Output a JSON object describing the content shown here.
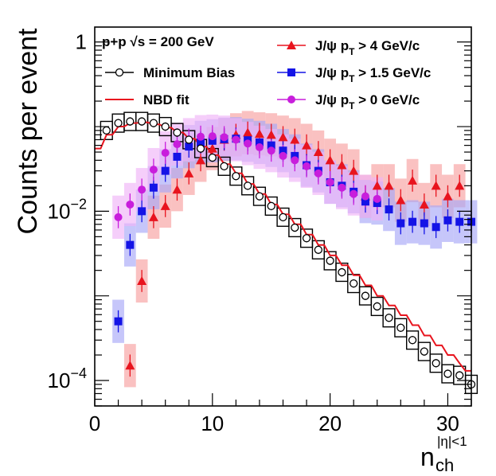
{
  "chart_data": {
    "type": "scatter",
    "title": "",
    "xlabel": "n",
    "xlabel_sub": "ch",
    "xlabel_sup": "|η|<1",
    "ylabel": "Counts per event",
    "xlim": [
      0,
      32
    ],
    "ylim": [
      5e-05,
      1.5
    ],
    "yscale": "log",
    "xticks": [
      0,
      10,
      20,
      30
    ],
    "yticks": [
      {
        "value": 1,
        "base": "1",
        "exp": ""
      },
      {
        "value": 0.01,
        "base": "10",
        "exp": "−2"
      },
      {
        "value": 0.0001,
        "base": "10",
        "exp": "−4"
      }
    ],
    "legend_header": "p+p  √s = 200 GeV",
    "series": [
      {
        "name": "Minimum Bias",
        "marker": "open-circle",
        "color": "#000000",
        "x": [
          1,
          2,
          3,
          4,
          5,
          6,
          7,
          8,
          9,
          10,
          11,
          12,
          13,
          14,
          15,
          16,
          17,
          18,
          19,
          20,
          21,
          22,
          23,
          24,
          25,
          26,
          27,
          28,
          29,
          30,
          31,
          32
        ],
        "y": [
          0.09,
          0.11,
          0.115,
          0.115,
          0.11,
          0.1,
          0.085,
          0.07,
          0.055,
          0.043,
          0.034,
          0.026,
          0.02,
          0.015,
          0.0115,
          0.0085,
          0.0064,
          0.0048,
          0.0035,
          0.0026,
          0.0019,
          0.0014,
          0.001,
          0.00075,
          0.00055,
          0.00042,
          0.0003,
          0.00022,
          0.00016,
          0.00012,
          0.000115,
          9e-05
        ]
      },
      {
        "name": "NBD fit",
        "marker": "line",
        "color": "#e8141e",
        "x": [
          0,
          0.5,
          1,
          1.5,
          2,
          2.5,
          3,
          3.5,
          4,
          4.5,
          5,
          5.5,
          6,
          6.5,
          7,
          7.5,
          8,
          8.5,
          9,
          9.5,
          10,
          10.5,
          11,
          11.5,
          12,
          12.5,
          13,
          13.5,
          14,
          14.5,
          15,
          15.5,
          16,
          16.5,
          17,
          17.5,
          18,
          18.5,
          19,
          19.5,
          20,
          20.5,
          21,
          21.5,
          22,
          22.5,
          23,
          23.5,
          24,
          24.5,
          25,
          25.5,
          26,
          26.5,
          27,
          27.5,
          28,
          28.5,
          29,
          29.5,
          30,
          30.5,
          31,
          31.5,
          32
        ],
        "y": [
          0.055,
          0.055,
          0.08,
          0.08,
          0.1,
          0.1,
          0.11,
          0.11,
          0.112,
          0.112,
          0.106,
          0.106,
          0.097,
          0.097,
          0.085,
          0.085,
          0.072,
          0.072,
          0.058,
          0.058,
          0.046,
          0.046,
          0.036,
          0.036,
          0.028,
          0.028,
          0.021,
          0.021,
          0.016,
          0.016,
          0.012,
          0.012,
          0.0092,
          0.0092,
          0.007,
          0.007,
          0.0053,
          0.0053,
          0.004,
          0.004,
          0.003,
          0.003,
          0.0023,
          0.0023,
          0.00175,
          0.00175,
          0.00133,
          0.00133,
          0.001,
          0.001,
          0.00077,
          0.00077,
          0.00059,
          0.00059,
          0.00045,
          0.00045,
          0.00034,
          0.00034,
          0.00026,
          0.00026,
          0.0002,
          0.0002,
          0.00016,
          0.00013,
          0.00013
        ]
      },
      {
        "name": "J/ψ p_T > 4 GeV/c",
        "label_base": "J/ψ p",
        "label_sub": "T",
        "label_rest": " > 4 GeV/c",
        "marker": "triangle",
        "color": "#e8141e",
        "band": "#f7a0a0",
        "x": [
          3,
          4,
          5,
          6,
          7,
          8,
          9,
          10,
          11,
          12,
          13,
          14,
          15,
          16,
          17,
          18,
          19,
          20,
          21,
          22,
          23,
          24,
          25,
          26,
          27,
          28,
          29,
          30,
          31
        ],
        "y": [
          0.00015,
          0.0015,
          0.0085,
          0.0115,
          0.018,
          0.028,
          0.04,
          0.055,
          0.07,
          0.08,
          0.085,
          0.082,
          0.08,
          0.075,
          0.07,
          0.06,
          0.05,
          0.04,
          0.035,
          0.03,
          0.015,
          0.02,
          0.02,
          0.0135,
          0.023,
          0.012,
          0.02,
          0.015,
          0.02
        ]
      },
      {
        "name": "J/ψ p_T > 1.5 GeV/c",
        "label_base": "J/ψ p",
        "label_sub": "T",
        "label_rest": " > 1.5 GeV/c",
        "marker": "square",
        "color": "#1414e6",
        "band": "#a8a8f7",
        "x": [
          2,
          3,
          4,
          5,
          6,
          7,
          8,
          9,
          10,
          11,
          12,
          13,
          14,
          15,
          16,
          17,
          18,
          19,
          20,
          21,
          22,
          23,
          24,
          25,
          26,
          27,
          28,
          29,
          30,
          31,
          32
        ],
        "y": [
          0.0005,
          0.004,
          0.01,
          0.019,
          0.03,
          0.044,
          0.058,
          0.065,
          0.068,
          0.071,
          0.072,
          0.069,
          0.065,
          0.06,
          0.052,
          0.045,
          0.035,
          0.03,
          0.022,
          0.02,
          0.017,
          0.013,
          0.0125,
          0.0105,
          0.0072,
          0.0075,
          0.0072,
          0.0065,
          0.0078,
          0.0075,
          0.0075
        ]
      },
      {
        "name": "J/ψ p_T > 0 GeV/c",
        "label_base": "J/ψ p",
        "label_sub": "T",
        "label_rest": " > 0 GeV/c",
        "marker": "circle",
        "color": "#c81edc",
        "band": "#f0b4f7",
        "x": [
          2,
          3,
          4,
          5,
          6,
          7,
          8,
          9,
          10,
          11,
          12,
          13,
          14,
          15,
          16,
          17,
          18,
          19,
          20,
          21,
          22,
          23,
          24
        ],
        "y": [
          0.0085,
          0.012,
          0.018,
          0.031,
          0.049,
          0.062,
          0.07,
          0.076,
          0.077,
          0.075,
          0.07,
          0.063,
          0.057,
          0.052,
          0.045,
          0.04,
          0.034,
          0.028,
          0.022,
          0.019,
          0.016,
          0.015,
          0.014
        ]
      }
    ]
  }
}
